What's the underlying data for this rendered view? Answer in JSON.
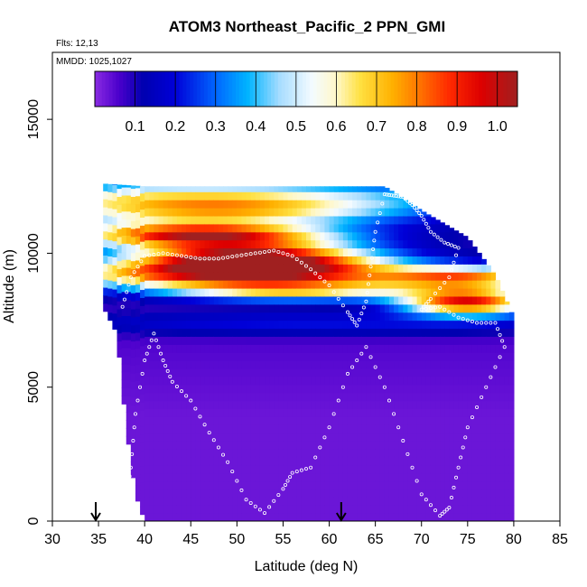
{
  "chart_data": {
    "type": "heatmap",
    "title": "ATOM3 Northeast_Pacific_2 PPN_GMI",
    "flights_note": "Flts: 12,13",
    "date_note": "MMDD: 1025,1027",
    "xlabel": "Latitude (deg N)",
    "ylabel": "Altitude (m)",
    "xlim": [
      30,
      85
    ],
    "ylim": [
      0,
      17500
    ],
    "x_ticks": [
      30,
      35,
      40,
      45,
      50,
      55,
      60,
      65,
      70,
      75,
      80,
      85
    ],
    "y_ticks": [
      0,
      5000,
      10000,
      15000
    ],
    "grid": false,
    "colorbar": {
      "placement": "top-inside",
      "range": [
        0,
        1.05
      ],
      "ticks": [
        0.1,
        0.2,
        0.3,
        0.4,
        0.5,
        0.6,
        0.7,
        0.8,
        0.9,
        1.0
      ],
      "tick_labels": [
        "0.1",
        "0.2",
        "0.3",
        "0.4",
        "0.5",
        "0.6",
        "0.7",
        "0.8",
        "0.9",
        "1.0"
      ],
      "color_stops": [
        [
          0.0,
          "#8a2be2"
        ],
        [
          0.06,
          "#4b00cc"
        ],
        [
          0.12,
          "#0000b0"
        ],
        [
          0.2,
          "#0000d8"
        ],
        [
          0.3,
          "#0066ff"
        ],
        [
          0.38,
          "#00b4ff"
        ],
        [
          0.46,
          "#a8ddff"
        ],
        [
          0.54,
          "#f4fbff"
        ],
        [
          0.6,
          "#fff8c8"
        ],
        [
          0.66,
          "#ffe040"
        ],
        [
          0.74,
          "#ffb000"
        ],
        [
          0.8,
          "#ff7a00"
        ],
        [
          0.88,
          "#ff2a00"
        ],
        [
          0.96,
          "#dd0000"
        ],
        [
          1.05,
          "#a02020"
        ]
      ]
    },
    "arrow_markers_lat": [
      34.7,
      61.3
    ],
    "curtain": {
      "columns_lat_range": [
        35.5,
        80
      ],
      "column_width_deg": 0.5,
      "bottom_alt": 0,
      "top_envelope": [
        [
          35.5,
          12600
        ],
        [
          40,
          12500
        ],
        [
          66,
          12500
        ],
        [
          70,
          11600
        ],
        [
          75,
          10600
        ],
        [
          78,
          9200
        ],
        [
          80,
          7600
        ]
      ],
      "bottom_envelope": [
        [
          35.5,
          8000
        ],
        [
          37,
          7000
        ],
        [
          38,
          3500
        ],
        [
          39,
          1000
        ],
        [
          40,
          0
        ],
        [
          80,
          0
        ]
      ],
      "background_value": 0.03,
      "features": [
        {
          "center": [
            51.5,
            9800
          ],
          "sigma": [
            9,
            420
          ],
          "amp": 1.03
        },
        {
          "center": [
            46,
            10700
          ],
          "sigma": [
            10,
            320
          ],
          "amp": 0.85
        },
        {
          "center": [
            50,
            9200
          ],
          "sigma": [
            16,
            350
          ],
          "amp": 0.7
        },
        {
          "center": [
            56,
            8600
          ],
          "sigma": [
            10,
            260
          ],
          "amp": 0.5
        },
        {
          "center": [
            48,
            11600
          ],
          "sigma": [
            14,
            380
          ],
          "amp": 0.58
        },
        {
          "center": [
            45,
            12200
          ],
          "sigma": [
            20,
            350
          ],
          "amp": 0.38
        },
        {
          "center": [
            75,
            8200
          ],
          "sigma": [
            5,
            350
          ],
          "amp": 0.85
        },
        {
          "center": [
            75,
            9100
          ],
          "sigma": [
            6,
            280
          ],
          "amp": 0.52
        },
        {
          "center": [
            58,
            7400
          ],
          "sigma": [
            22,
            300
          ],
          "amp": 0.15
        }
      ]
    },
    "flight_track": [
      [
        37.6,
        8000
      ],
      [
        38.5,
        9100
      ],
      [
        40,
        9900
      ],
      [
        42,
        10000
      ],
      [
        44,
        9900
      ],
      [
        46,
        9800
      ],
      [
        48,
        9800
      ],
      [
        50,
        9900
      ],
      [
        52,
        10000
      ],
      [
        54,
        10100
      ],
      [
        56,
        9900
      ],
      [
        58,
        9400
      ],
      [
        60,
        8800
      ],
      [
        62,
        7800
      ],
      [
        63,
        7300
      ],
      [
        64,
        8200
      ],
      [
        64.5,
        9500
      ],
      [
        65,
        10800
      ],
      [
        66,
        12200
      ],
      [
        67,
        12150
      ],
      [
        68,
        12100
      ],
      [
        69,
        11800
      ],
      [
        70,
        11400
      ],
      [
        71,
        10800
      ],
      [
        72.5,
        10400
      ],
      [
        74,
        10200
      ],
      [
        73,
        9100
      ],
      [
        71,
        8300
      ],
      [
        70,
        7900
      ],
      [
        72,
        8000
      ],
      [
        74,
        7600
      ],
      [
        76,
        7400
      ],
      [
        78,
        7400
      ],
      [
        79,
        6500
      ],
      [
        77,
        5000
      ],
      [
        75,
        3500
      ],
      [
        74,
        2000
      ],
      [
        73,
        500
      ],
      [
        72,
        200
      ],
      [
        70,
        1000
      ],
      [
        68,
        3000
      ],
      [
        66,
        5000
      ],
      [
        64,
        6500
      ],
      [
        62,
        5500
      ],
      [
        60,
        3500
      ],
      [
        58,
        2000
      ],
      [
        56,
        1800
      ],
      [
        55,
        1200
      ],
      [
        53,
        300
      ],
      [
        51,
        800
      ],
      [
        49,
        2200
      ],
      [
        47,
        3300
      ],
      [
        45,
        4500
      ],
      [
        43,
        5200
      ],
      [
        42,
        6000
      ],
      [
        41,
        7000
      ],
      [
        40,
        6000
      ],
      [
        39,
        4000
      ],
      [
        38.5,
        2000
      ],
      [
        38,
        700
      ]
    ]
  }
}
